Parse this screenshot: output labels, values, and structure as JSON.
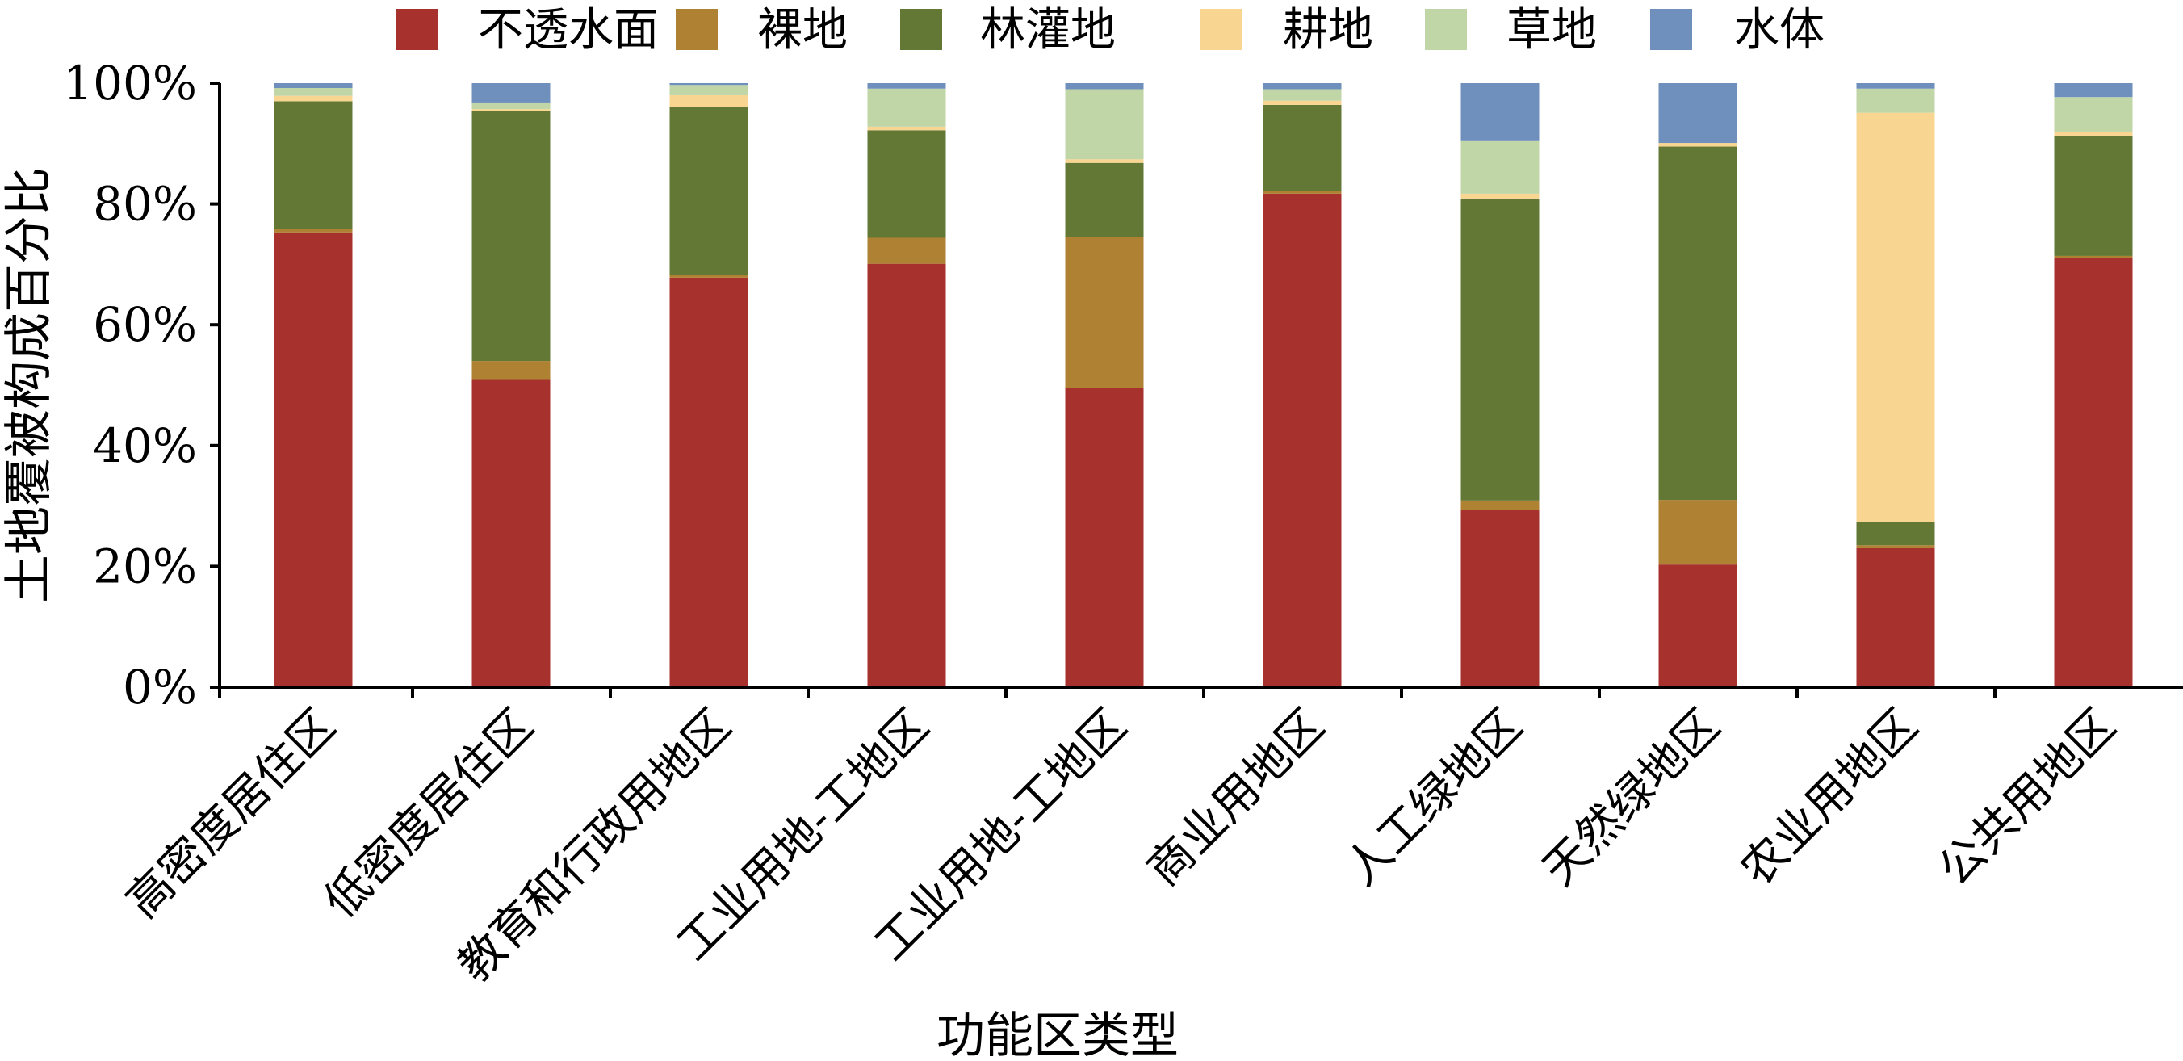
{
  "chart_data": {
    "type": "bar",
    "stacked": true,
    "categories": [
      "高密度居住区",
      "低密度居住区",
      "教育和行政用地区",
      "工业用地-工地区",
      "工业用地-工地区",
      "商业用地区",
      "人工绿地区",
      "天然绿地区",
      "农业用地区",
      "公共用地区"
    ],
    "series": [
      {
        "name": "不透水面",
        "color": "#A7312C",
        "values": [
          75.3,
          51.0,
          67.8,
          70.1,
          49.6,
          81.7,
          29.3,
          20.3,
          23.0,
          71.0
        ]
      },
      {
        "name": "裸地",
        "color": "#AF8233",
        "values": [
          0.6,
          3.0,
          0.4,
          4.3,
          24.9,
          0.5,
          1.6,
          10.7,
          0.5,
          0.4
        ]
      },
      {
        "name": "林灌地",
        "color": "#637834",
        "values": [
          21.1,
          41.4,
          27.8,
          17.8,
          12.3,
          14.2,
          50.0,
          58.5,
          3.8,
          19.9
        ]
      },
      {
        "name": "耕地",
        "color": "#F8D591",
        "values": [
          0.9,
          0.3,
          2.0,
          0.6,
          0.6,
          0.7,
          0.8,
          0.6,
          67.8,
          0.6
        ]
      },
      {
        "name": "草地",
        "color": "#C0D6A7",
        "values": [
          1.3,
          1.1,
          1.7,
          6.3,
          11.6,
          1.9,
          8.7,
          0.0,
          4.0,
          5.8
        ]
      },
      {
        "name": "水体",
        "color": "#6F8FBC",
        "values": [
          0.8,
          3.2,
          0.3,
          0.9,
          1.0,
          1.0,
          9.6,
          9.9,
          0.9,
          2.3
        ]
      }
    ],
    "y_ticks": [
      "0%",
      "20%",
      "40%",
      "60%",
      "80%",
      "100%"
    ],
    "ylim": [
      0,
      100
    ],
    "xlabel": "功能区类型",
    "ylabel": "土地覆被构成百分比",
    "title": "",
    "legend_position": "top",
    "grid": false
  }
}
